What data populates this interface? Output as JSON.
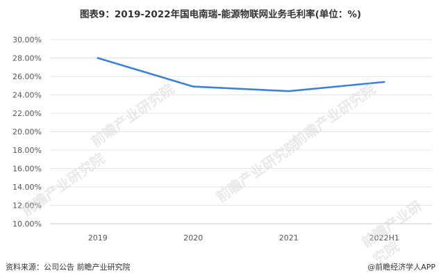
{
  "title": "图表9：2019-2022年国电南瑞-能源物联网业务毛利率(单位：%)",
  "source": "资料来源：公司公告 前瞻产业研究院",
  "credit": "@前瞻经济学人APP",
  "watermark": "前瞻产业研究院",
  "colors": {
    "line": "#3b82d6",
    "grid": "#e4e4e4",
    "axis": "#c8c8c8",
    "text": "#555555"
  },
  "chart_data": {
    "type": "line",
    "categories": [
      "2019",
      "2020",
      "2021",
      "2022H1"
    ],
    "series": [
      {
        "values": [
          28.0,
          24.9,
          24.4,
          25.4
        ]
      }
    ],
    "ylim": [
      10,
      30
    ],
    "yticks": [
      "10.00%",
      "12.00%",
      "14.00%",
      "16.00%",
      "18.00%",
      "20.00%",
      "22.00%",
      "24.00%",
      "26.00%",
      "28.00%",
      "30.00%"
    ],
    "grid": true,
    "legend": "none"
  }
}
